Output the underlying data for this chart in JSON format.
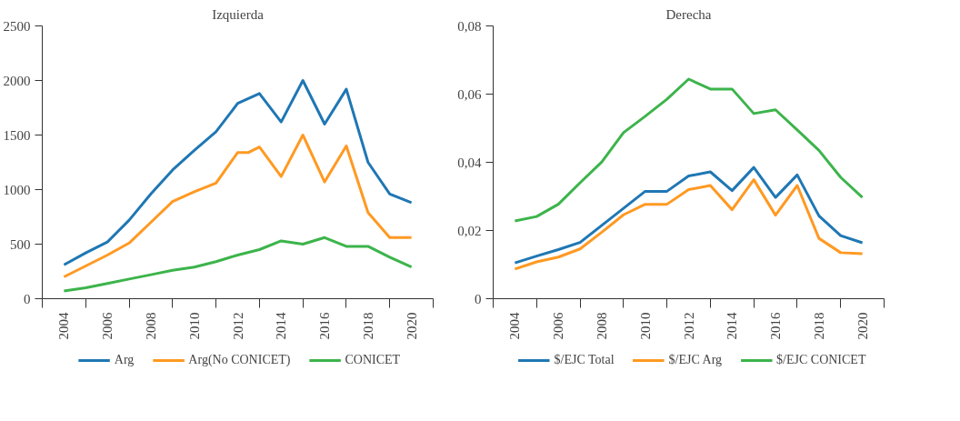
{
  "chart_data": [
    {
      "type": "line",
      "title": "Izquierda",
      "x": [
        2004,
        2005,
        2006,
        2007,
        2008,
        2009,
        2010,
        2011,
        2012,
        2013,
        2014,
        2015,
        2016,
        2017,
        2018,
        2019,
        2020
      ],
      "series": [
        {
          "name": "Arg",
          "color": "#1f77b4",
          "values": [
            310,
            420,
            520,
            720,
            960,
            1180,
            1360,
            1530,
            1790,
            1880,
            1620,
            2000,
            1600,
            1920,
            1250,
            960,
            880
          ]
        },
        {
          "name": "Arg(No CONICET)",
          "color": "#ff9922",
          "x": [
            2004,
            2005,
            2006,
            2007,
            2008,
            2009,
            2010,
            2011,
            2012,
            2012.5,
            2013,
            2014,
            2015,
            2016,
            2017,
            2018,
            2019,
            2020
          ],
          "values": [
            200,
            300,
            400,
            510,
            700,
            890,
            980,
            1060,
            1340,
            1340,
            1390,
            1120,
            1500,
            1070,
            1400,
            790,
            560,
            560
          ]
        },
        {
          "name": "CONICET",
          "color": "#3cb44b",
          "values": [
            70,
            100,
            140,
            180,
            220,
            260,
            290,
            340,
            400,
            450,
            530,
            500,
            560,
            480,
            480,
            380,
            290
          ]
        }
      ],
      "xlim": [
        2003,
        2021
      ],
      "xticks": [
        {
          "value": 2003,
          "label": null
        },
        2004,
        {
          "value": 2005,
          "label": null
        },
        2006,
        {
          "value": 2007,
          "label": null
        },
        2008,
        {
          "value": 2009,
          "label": null
        },
        2010,
        {
          "value": 2011,
          "label": null
        },
        2012,
        {
          "value": 2013,
          "label": null
        },
        2014,
        {
          "value": 2015,
          "label": null
        },
        2016,
        {
          "value": 2017,
          "label": null
        },
        2018,
        {
          "value": 2019,
          "label": null
        },
        2020,
        {
          "value": 2021,
          "label": null
        }
      ],
      "ylim": [
        0,
        2500
      ],
      "yticks": [
        0,
        500,
        1000,
        1500,
        2000,
        2500
      ],
      "grid": false,
      "legend": "bottom",
      "marker": "none",
      "line_style": "solid"
    },
    {
      "type": "line",
      "title": "Derecha",
      "x": [
        2004,
        2005,
        2006,
        2007,
        2008,
        2009,
        2010,
        2011,
        2012,
        2013,
        2014,
        2015,
        2016,
        2017,
        2018,
        2019,
        2020
      ],
      "series": [
        {
          "name": "$/EJC Total",
          "color": "#1f77b4",
          "values": [
            0.0105,
            0.0125,
            0.0144,
            0.0165,
            0.0215,
            0.0265,
            0.0315,
            0.0315,
            0.036,
            0.0372,
            0.0317,
            0.0385,
            0.0297,
            0.0363,
            0.0243,
            0.0185,
            0.0164
          ]
        },
        {
          "name": "$/EJC Arg",
          "color": "#ff9922",
          "values": [
            0.0087,
            0.0108,
            0.0122,
            0.0146,
            0.0195,
            0.0246,
            0.0277,
            0.0277,
            0.032,
            0.0332,
            0.0261,
            0.0349,
            0.0245,
            0.0332,
            0.0177,
            0.0135,
            0.0132
          ]
        },
        {
          "name": "$/EJC CONICET",
          "color": "#3cb44b",
          "values": [
            0.0228,
            0.0241,
            0.0277,
            0.034,
            0.0401,
            0.0487,
            0.0535,
            0.0585,
            0.0644,
            0.0615,
            0.0615,
            0.0543,
            0.0554,
            0.0495,
            0.0435,
            0.0356,
            0.0297
          ]
        }
      ],
      "xlim": [
        2003,
        2021
      ],
      "xticks": [
        {
          "value": 2003,
          "label": null
        },
        2004,
        {
          "value": 2005,
          "label": null
        },
        2006,
        {
          "value": 2007,
          "label": null
        },
        2008,
        {
          "value": 2009,
          "label": null
        },
        2010,
        {
          "value": 2011,
          "label": null
        },
        2012,
        {
          "value": 2013,
          "label": null
        },
        2014,
        {
          "value": 2015,
          "label": null
        },
        2016,
        {
          "value": 2017,
          "label": null
        },
        2018,
        {
          "value": 2019,
          "label": null
        },
        2020,
        {
          "value": 2021,
          "label": null
        }
      ],
      "ylim": [
        0,
        0.08
      ],
      "yticks": [
        0,
        {
          "value": 0.02,
          "label": "0,02"
        },
        {
          "value": 0.04,
          "label": "0,04"
        },
        {
          "value": 0.06,
          "label": "0,06"
        },
        {
          "value": 0.08,
          "label": "0,08"
        }
      ],
      "grid": false,
      "legend": "bottom",
      "marker": "none",
      "line_style": "solid"
    }
  ]
}
